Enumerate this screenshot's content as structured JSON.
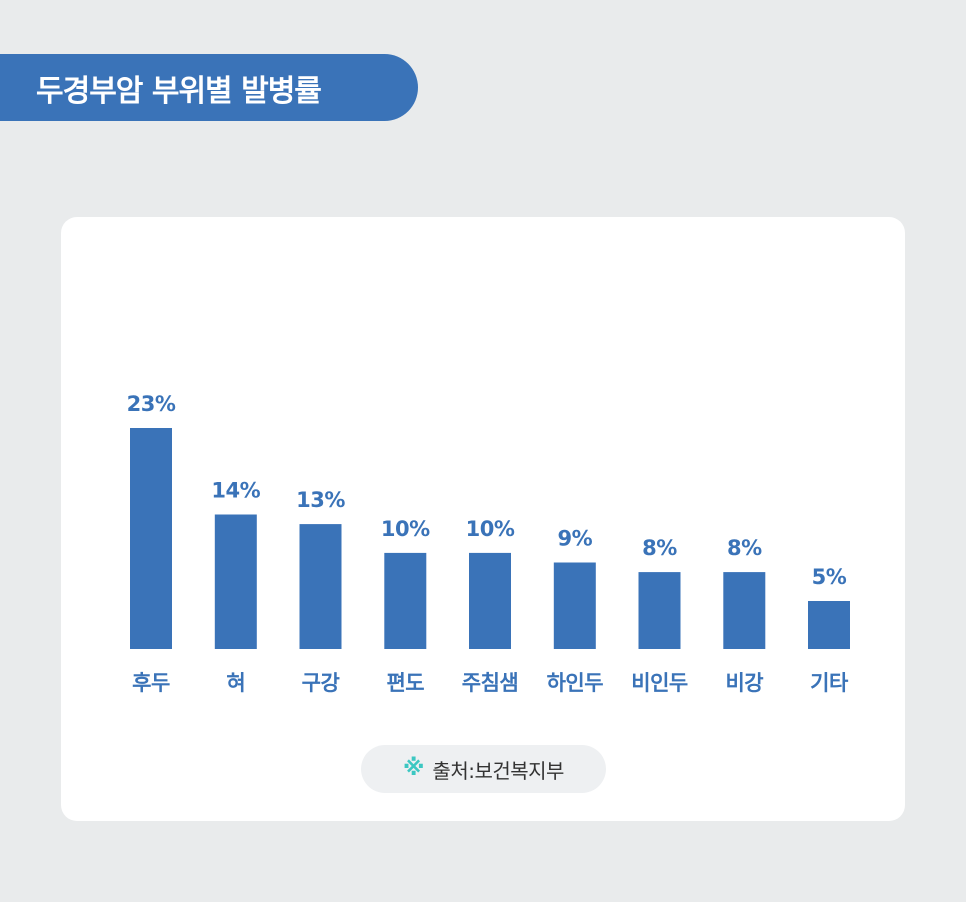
{
  "title": "두경부암 부위별 발병률",
  "source": {
    "icon": "reference-mark-icon",
    "text": "출처:보건복지부"
  },
  "colors": {
    "background": "#e9ebec",
    "banner": "#3a73b8",
    "bar": "#3a73b8",
    "label": "#3a73b8",
    "source_icon": "#3cc7c2"
  },
  "chart_data": {
    "type": "bar",
    "title": "두경부암 부위별 발병률",
    "xlabel": "",
    "ylabel": "",
    "categories": [
      "후두",
      "혀",
      "구강",
      "편도",
      "주침샘",
      "하인두",
      "비인두",
      "비강",
      "기타"
    ],
    "values": [
      23,
      14,
      13,
      10,
      10,
      9,
      8,
      8,
      5
    ],
    "value_labels": [
      "23%",
      "14%",
      "13%",
      "10%",
      "10%",
      "9%",
      "8%",
      "8%",
      "5%"
    ],
    "unit": "%",
    "ylim": [
      0,
      23
    ],
    "grid": false,
    "legend": "none"
  }
}
